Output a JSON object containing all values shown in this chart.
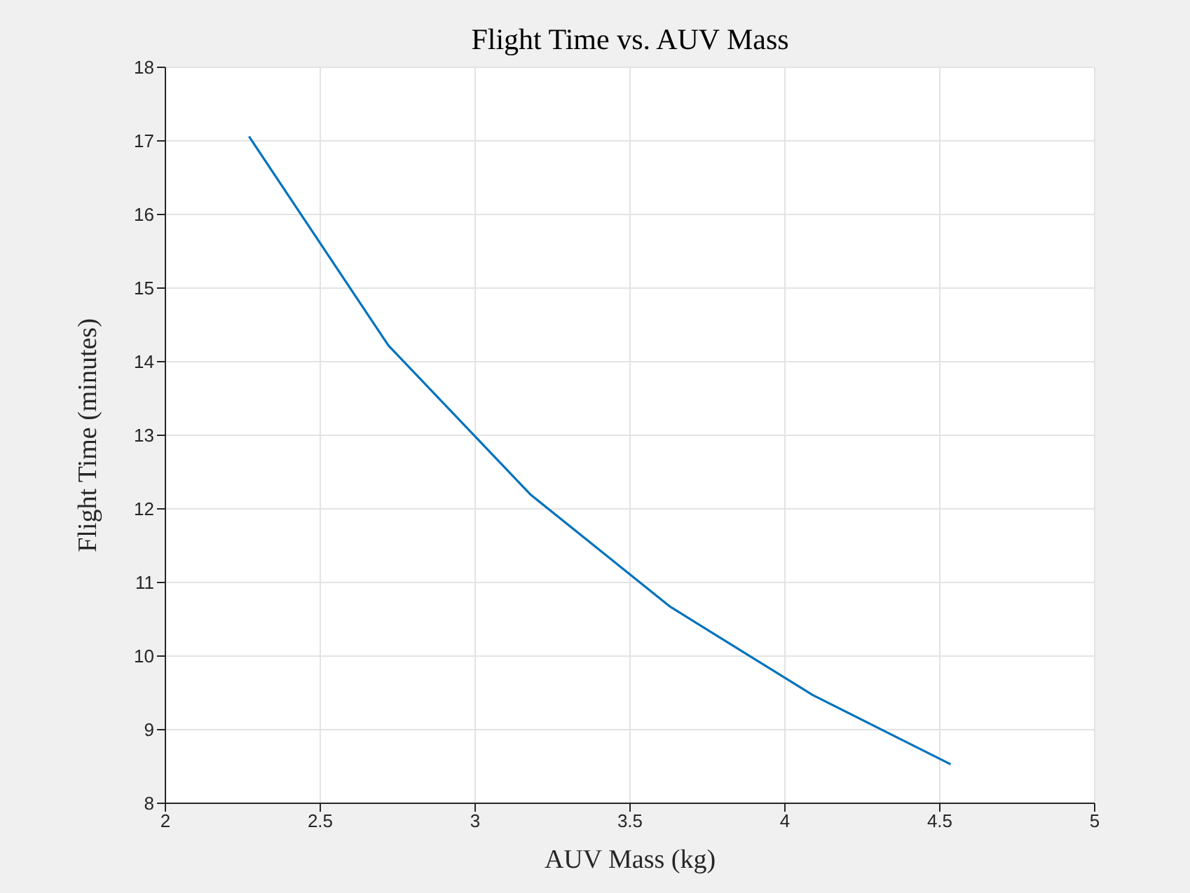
{
  "chart_data": {
    "type": "line",
    "title": "Flight Time vs. AUV Mass",
    "xlabel": "AUV Mass (kg)",
    "ylabel": "Flight Time (minutes)",
    "x": [
      2.27,
      2.72,
      3.18,
      3.63,
      4.09,
      4.535
    ],
    "series": [
      {
        "color": "#0072bd",
        "values": [
          17.06,
          14.22,
          12.19,
          10.67,
          9.47,
          8.53
        ]
      }
    ],
    "xlim": [
      2,
      5
    ],
    "ylim": [
      8,
      18
    ],
    "xticks": [
      2,
      2.5,
      3,
      3.5,
      4,
      4.5,
      5
    ],
    "yticks": [
      8,
      9,
      10,
      11,
      12,
      13,
      14,
      15,
      16,
      17,
      18
    ],
    "grid": true,
    "legend": false,
    "marker": "none",
    "line_style": "solid"
  }
}
